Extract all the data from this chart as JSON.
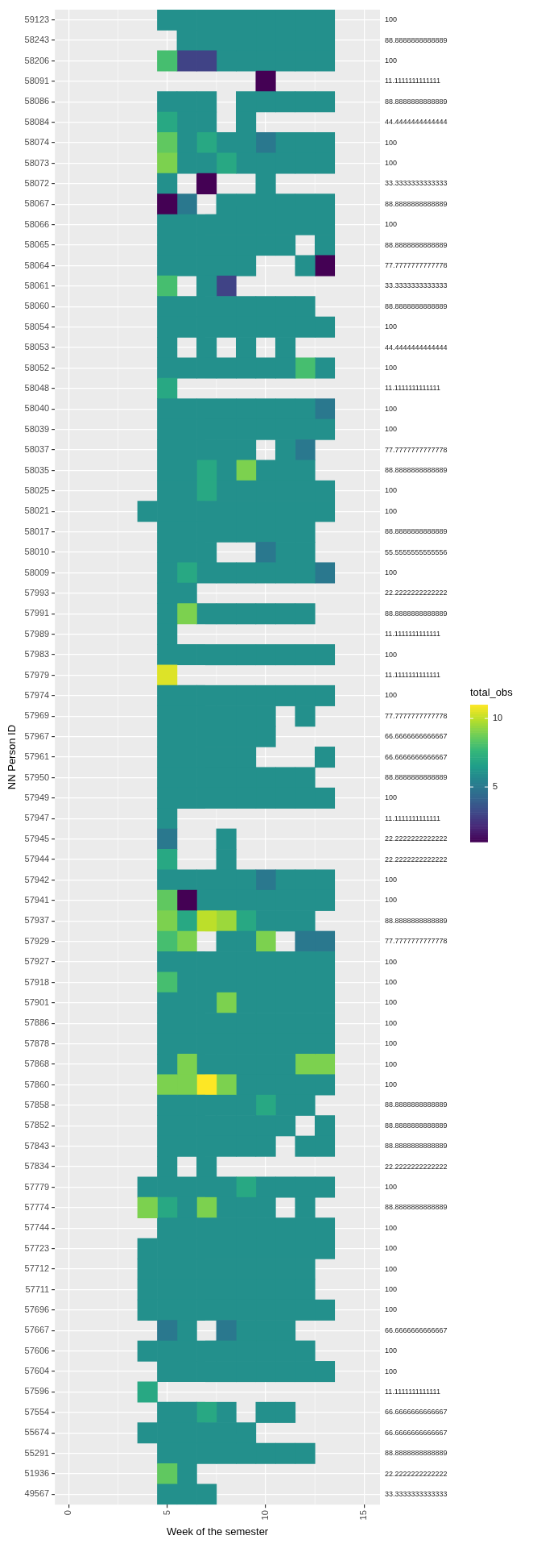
{
  "chart_data": {
    "type": "heatmap",
    "xlabel": "Week of the semester",
    "ylabel": "NN Person ID",
    "clabel": "total_obs",
    "grid": true,
    "x": [
      4,
      5,
      6,
      7,
      8,
      9,
      10,
      11,
      12,
      13
    ],
    "xlim": [
      -0.7,
      15.8
    ],
    "xticks": [
      0,
      5,
      10,
      15
    ],
    "clim": [
      1,
      11
    ],
    "cticks": [
      5,
      10
    ],
    "y_categories": [
      "59123",
      "58243",
      "58206",
      "58091",
      "58086",
      "58084",
      "58074",
      "58073",
      "58072",
      "58067",
      "58066",
      "58065",
      "58064",
      "58061",
      "58060",
      "58054",
      "58053",
      "58052",
      "58048",
      "58040",
      "58039",
      "58037",
      "58035",
      "58025",
      "58021",
      "58017",
      "58010",
      "58009",
      "57993",
      "57991",
      "57989",
      "57983",
      "57979",
      "57974",
      "57969",
      "57967",
      "57961",
      "57950",
      "57949",
      "57947",
      "57945",
      "57944",
      "57942",
      "57941",
      "57937",
      "57929",
      "57927",
      "57918",
      "57901",
      "57886",
      "57878",
      "57868",
      "57860",
      "57858",
      "57852",
      "57843",
      "57834",
      "57779",
      "57774",
      "57744",
      "57723",
      "57712",
      "57711",
      "57696",
      "57667",
      "57606",
      "57604",
      "57596",
      "57554",
      "55674",
      "55291",
      "51936",
      "49567"
    ],
    "y2_categories": [
      "100",
      "88.8888888888889",
      "100",
      "11.1111111111111",
      "88.8888888888889",
      "44.4444444444444",
      "100",
      "100",
      "33.3333333333333",
      "88.8888888888889",
      "100",
      "88.8888888888889",
      "77.7777777777778",
      "33.3333333333333",
      "88.8888888888889",
      "100",
      "44.4444444444444",
      "100",
      "11.1111111111111",
      "100",
      "100",
      "77.7777777777778",
      "88.8888888888889",
      "100",
      "100",
      "88.8888888888889",
      "55.5555555555556",
      "100",
      "22.2222222222222",
      "88.8888888888889",
      "11.1111111111111",
      "100",
      "11.1111111111111",
      "100",
      "77.7777777777778",
      "66.6666666666667",
      "66.6666666666667",
      "88.8888888888889",
      "100",
      "11.1111111111111",
      "22.2222222222222",
      "22.2222222222222",
      "100",
      "100",
      "88.8888888888889",
      "77.7777777777778",
      "100",
      "100",
      "100",
      "100",
      "100",
      "100",
      "100",
      "88.8888888888889",
      "88.8888888888889",
      "88.8888888888889",
      "22.2222222222222",
      "100",
      "88.8888888888889",
      "100",
      "100",
      "100",
      "100",
      "100",
      "66.6666666666667",
      "100",
      "100",
      "11.1111111111111",
      "66.6666666666667",
      "66.6666666666667",
      "88.8888888888889",
      "22.2222222222222",
      "33.3333333333333"
    ],
    "cells": [
      [
        null,
        6,
        6,
        6,
        6,
        6,
        6,
        6,
        6,
        6
      ],
      [
        null,
        null,
        6,
        6,
        6,
        6,
        6,
        6,
        6,
        6
      ],
      [
        null,
        8,
        3,
        3,
        6,
        6,
        6,
        6,
        6,
        6
      ],
      [
        null,
        null,
        null,
        null,
        null,
        null,
        1,
        null,
        null,
        null
      ],
      [
        null,
        6,
        6,
        6,
        null,
        6,
        6,
        6,
        6,
        6
      ],
      [
        null,
        7,
        6,
        6,
        null,
        6,
        null,
        null,
        null,
        null
      ],
      [
        null,
        8.5,
        6,
        7,
        6,
        6,
        5,
        6,
        6,
        6
      ],
      [
        null,
        9,
        6,
        6,
        7,
        6,
        6,
        6,
        6,
        6
      ],
      [
        null,
        6,
        null,
        1,
        null,
        null,
        6,
        null,
        null,
        null
      ],
      [
        null,
        1,
        5,
        null,
        6,
        6,
        6,
        6,
        6,
        6
      ],
      [
        null,
        6,
        6,
        6,
        6,
        6,
        6,
        6,
        6,
        6
      ],
      [
        null,
        6,
        6,
        6,
        6,
        6,
        6,
        6,
        null,
        6
      ],
      [
        null,
        6,
        6,
        6,
        6,
        6,
        null,
        null,
        6,
        1
      ],
      [
        null,
        8,
        null,
        6,
        3,
        null,
        null,
        null,
        null,
        null
      ],
      [
        null,
        6,
        6,
        6,
        6,
        6,
        6,
        6,
        6,
        null
      ],
      [
        null,
        6,
        6,
        6,
        6,
        6,
        6,
        6,
        6,
        6
      ],
      [
        null,
        6,
        null,
        6,
        null,
        6,
        null,
        6,
        null,
        null
      ],
      [
        null,
        6,
        6,
        6,
        6,
        6,
        6,
        6,
        8,
        6
      ],
      [
        null,
        7,
        null,
        null,
        null,
        null,
        null,
        null,
        null,
        null
      ],
      [
        null,
        6,
        6,
        6,
        6,
        6,
        6,
        6,
        6,
        5
      ],
      [
        null,
        6,
        6,
        6,
        6,
        6,
        6,
        6,
        6,
        6
      ],
      [
        null,
        6,
        6,
        6,
        6,
        6,
        null,
        6,
        5,
        null
      ],
      [
        null,
        6,
        6,
        7,
        6,
        9,
        6,
        6,
        6,
        null
      ],
      [
        null,
        6,
        6,
        7,
        6,
        6,
        6,
        6,
        6,
        6
      ],
      [
        6,
        6,
        6,
        6,
        6,
        6,
        6,
        6,
        6,
        6
      ],
      [
        null,
        6,
        6,
        6,
        6,
        6,
        6,
        6,
        6,
        null
      ],
      [
        null,
        6,
        6,
        6,
        null,
        null,
        5,
        6,
        6,
        null
      ],
      [
        null,
        6,
        7,
        6,
        6,
        6,
        6,
        6,
        6,
        5
      ],
      [
        null,
        6,
        6,
        null,
        null,
        null,
        null,
        null,
        null,
        null
      ],
      [
        null,
        6,
        9,
        6,
        6,
        6,
        6,
        6,
        6,
        null
      ],
      [
        null,
        6,
        null,
        null,
        null,
        null,
        null,
        null,
        null,
        null
      ],
      [
        null,
        6,
        6,
        6,
        6,
        6,
        6,
        6,
        6,
        6
      ],
      [
        null,
        10.5,
        null,
        null,
        null,
        null,
        null,
        null,
        null,
        null
      ],
      [
        null,
        6,
        6,
        6,
        6,
        6,
        6,
        6,
        6,
        6
      ],
      [
        null,
        6,
        6,
        6,
        6,
        6,
        6,
        null,
        6,
        null
      ],
      [
        null,
        6,
        6,
        6,
        6,
        6,
        6,
        null,
        null,
        null
      ],
      [
        null,
        6,
        6,
        6,
        6,
        6,
        null,
        null,
        null,
        6
      ],
      [
        null,
        6,
        6,
        6,
        6,
        6,
        6,
        6,
        6,
        null
      ],
      [
        null,
        6,
        6,
        6,
        6,
        6,
        6,
        6,
        6,
        6
      ],
      [
        null,
        6,
        null,
        null,
        null,
        null,
        null,
        null,
        null,
        null
      ],
      [
        null,
        5,
        null,
        null,
        6,
        null,
        null,
        null,
        null,
        null
      ],
      [
        null,
        7,
        null,
        null,
        6,
        null,
        null,
        null,
        null,
        null
      ],
      [
        null,
        6,
        6,
        6,
        6,
        6,
        5,
        6,
        6,
        6
      ],
      [
        null,
        8.5,
        1,
        6,
        6,
        6,
        6,
        6,
        6,
        6
      ],
      [
        null,
        9,
        7,
        10,
        9.5,
        7,
        6,
        6,
        6,
        null
      ],
      [
        null,
        8,
        9,
        null,
        6,
        6,
        9,
        null,
        5,
        5
      ],
      [
        null,
        6,
        6,
        6,
        6,
        6,
        6,
        6,
        6,
        6
      ],
      [
        null,
        8,
        6,
        6,
        6,
        6,
        6,
        6,
        6,
        6
      ],
      [
        null,
        6,
        6,
        6,
        9,
        6,
        6,
        6,
        6,
        6
      ],
      [
        null,
        6,
        6,
        6,
        6,
        6,
        6,
        6,
        6,
        6
      ],
      [
        null,
        6,
        6,
        6,
        6,
        6,
        6,
        6,
        6,
        6
      ],
      [
        null,
        6,
        9,
        6,
        6,
        6,
        6,
        6,
        9,
        9
      ],
      [
        null,
        9,
        9,
        11,
        9,
        6,
        6,
        6,
        6,
        6
      ],
      [
        null,
        6,
        6,
        6,
        6,
        6,
        7,
        6,
        6,
        null
      ],
      [
        null,
        6,
        6,
        6,
        6,
        6,
        6,
        6,
        null,
        6
      ],
      [
        null,
        6,
        6,
        6,
        6,
        6,
        6,
        null,
        6,
        6
      ],
      [
        null,
        6,
        null,
        6,
        null,
        null,
        null,
        null,
        null,
        null
      ],
      [
        6,
        6,
        6,
        6,
        6,
        7,
        6,
        6,
        6,
        6
      ],
      [
        9,
        7,
        6,
        9,
        6,
        6,
        6,
        null,
        6,
        null
      ],
      [
        null,
        6,
        6,
        6,
        6,
        6,
        6,
        6,
        6,
        6
      ],
      [
        6,
        6,
        6,
        6,
        6,
        6,
        6,
        6,
        6,
        6
      ],
      [
        6,
        6,
        6,
        6,
        6,
        6,
        6,
        6,
        6,
        null
      ],
      [
        6,
        6,
        6,
        6,
        6,
        6,
        6,
        6,
        6,
        null
      ],
      [
        6,
        6,
        6,
        6,
        6,
        6,
        6,
        6,
        6,
        6
      ],
      [
        null,
        5,
        6,
        null,
        5,
        6,
        6,
        6,
        null,
        null
      ],
      [
        6,
        6,
        6,
        6,
        6,
        6,
        6,
        6,
        6,
        null
      ],
      [
        null,
        6,
        6,
        6,
        6,
        6,
        6,
        6,
        6,
        6
      ],
      [
        7,
        null,
        null,
        null,
        null,
        null,
        null,
        null,
        null,
        null
      ],
      [
        null,
        6,
        6,
        7,
        6,
        null,
        6,
        6,
        null,
        null
      ],
      [
        6,
        6,
        6,
        6,
        6,
        6,
        null,
        null,
        null,
        null
      ],
      [
        null,
        6,
        6,
        6,
        6,
        6,
        6,
        6,
        6,
        null
      ],
      [
        null,
        8.5,
        6,
        null,
        null,
        null,
        null,
        null,
        null,
        null
      ],
      [
        null,
        6,
        6,
        6,
        null,
        null,
        null,
        null,
        null,
        null
      ]
    ]
  }
}
